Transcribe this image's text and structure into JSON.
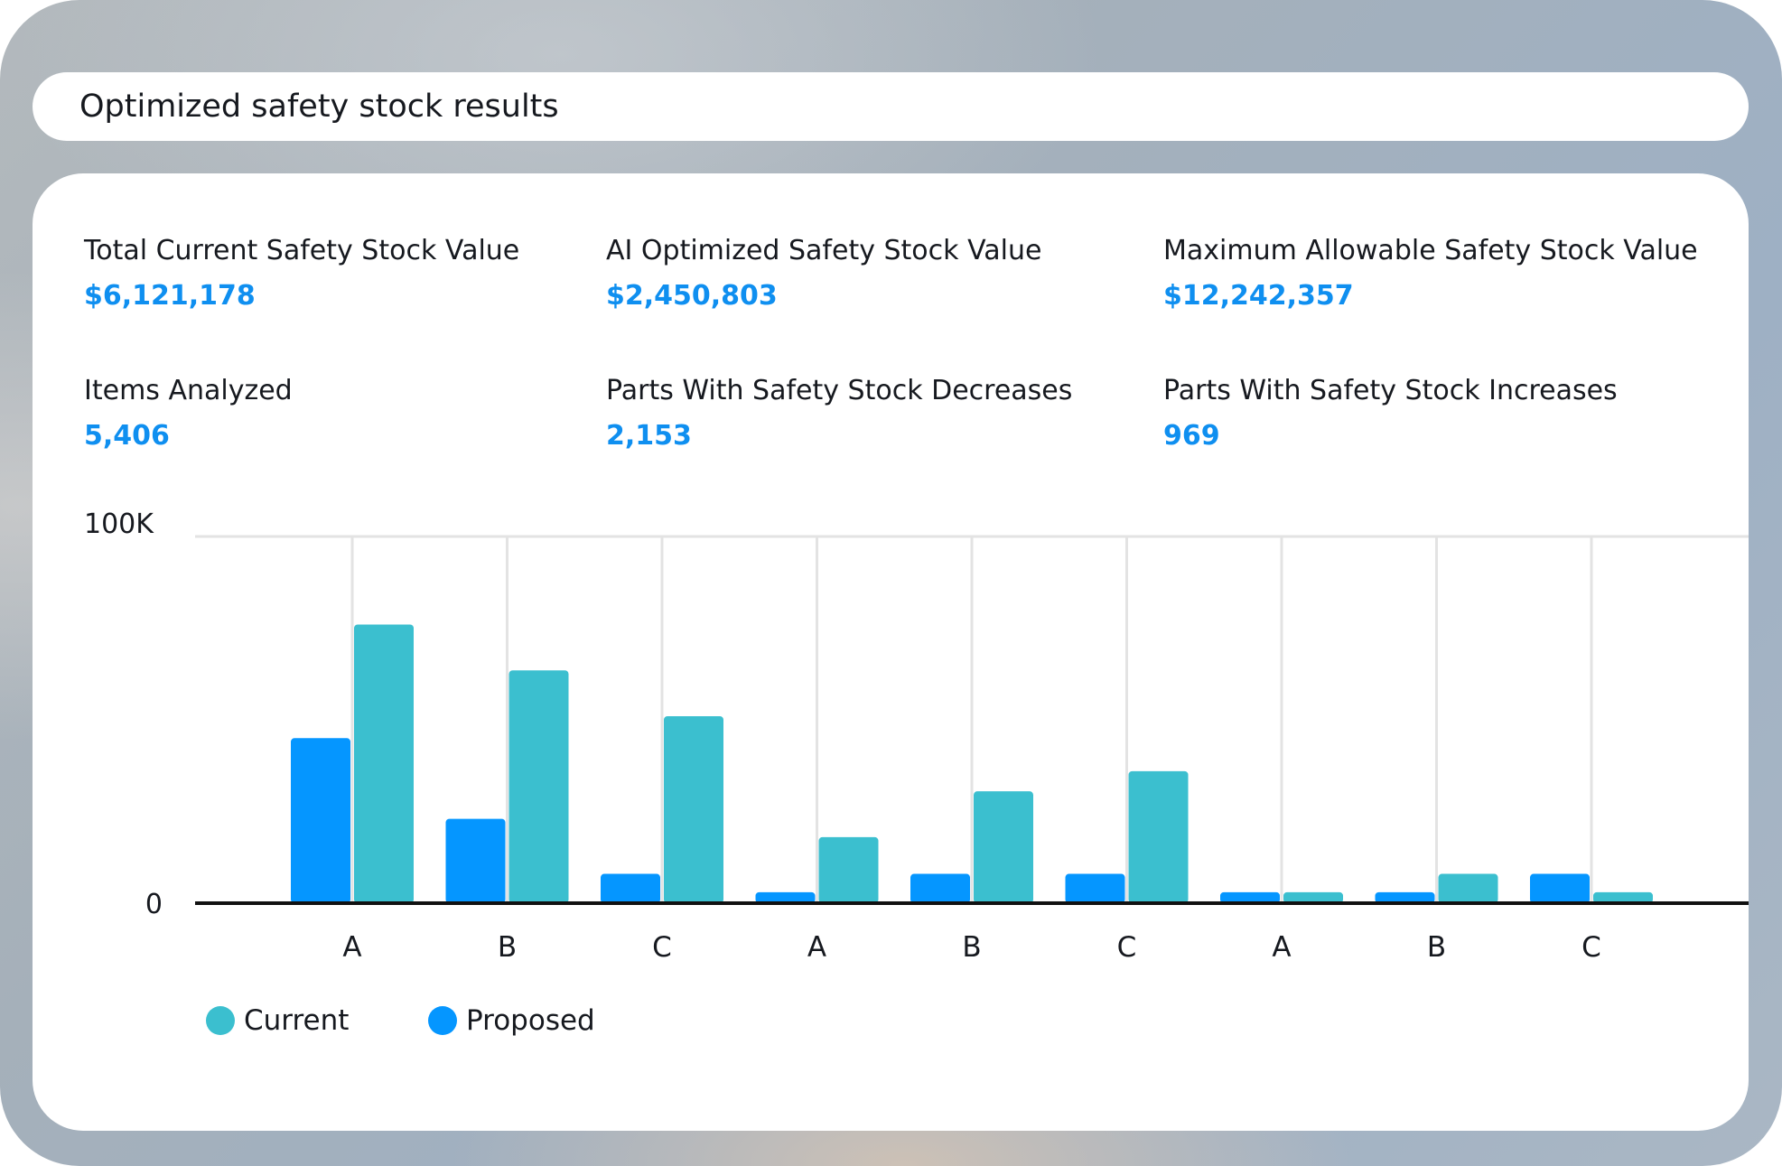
{
  "header": {
    "title": "Optimized safety stock results"
  },
  "stats": [
    {
      "label": "Total Current Safety Stock Value",
      "value": "$6,121,178"
    },
    {
      "label": "AI Optimized Safety Stock Value",
      "value": "$2,450,803"
    },
    {
      "label": "Maximum Allowable Safety Stock Value",
      "value": "$12,242,357"
    },
    {
      "label": "Items Analyzed",
      "value": "5,406"
    },
    {
      "label": "Parts With Safety Stock Decreases",
      "value": "2,153"
    },
    {
      "label": "Parts With Safety Stock Increases",
      "value": "969"
    }
  ],
  "colors": {
    "current": "#3bbfcf",
    "proposed": "#0596ff",
    "value_text": "#0f8ff0",
    "gridline": "#e3e3e3",
    "baseline": "#111111"
  },
  "legend": {
    "current_label": "Current",
    "proposed_label": "Proposed"
  },
  "chart_data": {
    "type": "bar",
    "categories": [
      "A",
      "B",
      "C",
      "A",
      "B",
      "C",
      "A",
      "B",
      "C"
    ],
    "series": [
      {
        "name": "Proposed",
        "values": [
          45000,
          23000,
          8000,
          3000,
          8000,
          8000,
          3000,
          3000,
          8000
        ]
      },
      {
        "name": "Current",
        "values": [
          76000,
          63500,
          51000,
          18000,
          30500,
          36000,
          3000,
          8000,
          3000
        ]
      }
    ],
    "ylim": [
      0,
      100000
    ],
    "yticks": [
      {
        "value": 0,
        "label": "0"
      },
      {
        "value": 100000,
        "label": "100K"
      }
    ],
    "grid": true,
    "legend_position": "bottom-left"
  }
}
